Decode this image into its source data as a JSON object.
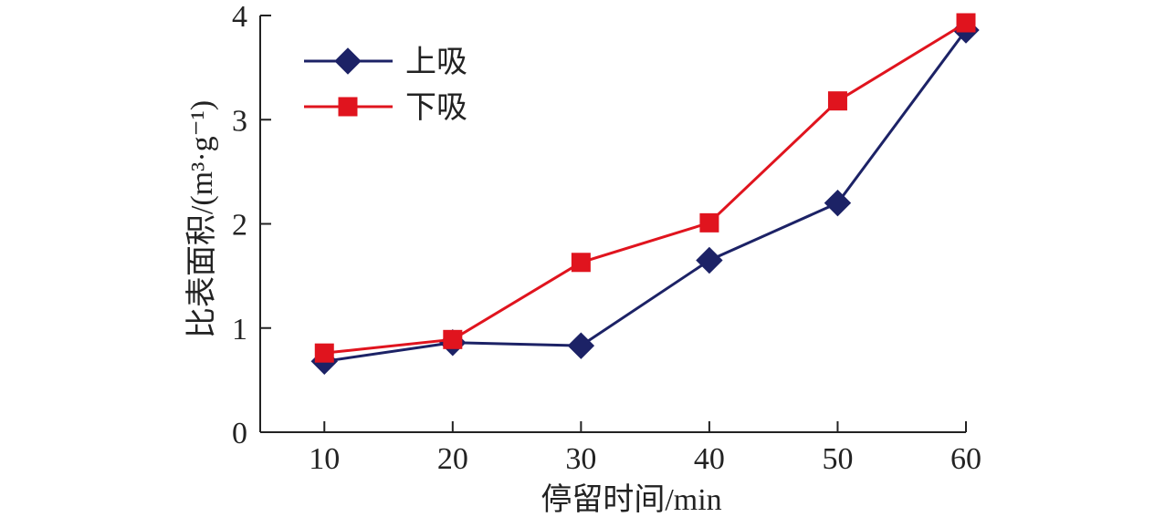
{
  "chart_data": {
    "type": "line",
    "x": [
      10,
      20,
      30,
      40,
      50,
      60
    ],
    "xlabel": "停留时间/min",
    "ylabel": "比表面积/(m³·g⁻¹)",
    "xlim": [
      5,
      60
    ],
    "ylim": [
      0,
      4
    ],
    "xticks": [
      "10",
      "20",
      "30",
      "40",
      "50",
      "60"
    ],
    "yticks": [
      "0",
      "1",
      "2",
      "3",
      "4"
    ],
    "grid": false,
    "legend_position": "top-left",
    "series": [
      {
        "name": "上吸",
        "marker": "diamond",
        "color": "#1c2266",
        "values": [
          0.68,
          0.86,
          0.83,
          1.65,
          2.2,
          3.86
        ]
      },
      {
        "name": "下吸",
        "marker": "square",
        "color": "#e0141e",
        "values": [
          0.76,
          0.89,
          1.63,
          2.01,
          3.18,
          3.93
        ]
      }
    ]
  }
}
